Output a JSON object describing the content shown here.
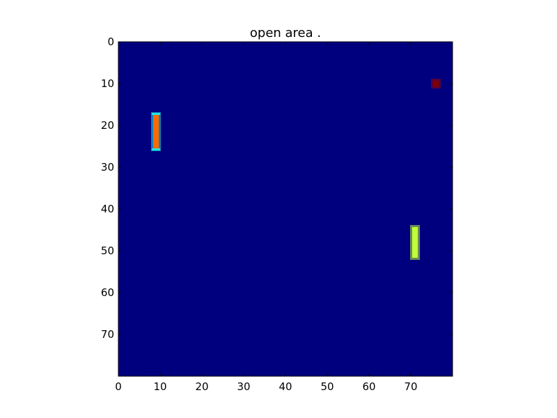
{
  "chart_data": {
    "type": "heatmap",
    "title": "open area .",
    "xlabel": "",
    "ylabel": "",
    "xlim": [
      0,
      80
    ],
    "ylim": [
      80,
      0
    ],
    "x_ticks": [
      0,
      10,
      20,
      30,
      40,
      50,
      60,
      70
    ],
    "y_ticks": [
      0,
      10,
      20,
      30,
      40,
      50,
      60,
      70
    ],
    "grid": false,
    "colormap": "jet",
    "background_value": 0.0,
    "background_color": "#00007f",
    "features": [
      {
        "kind": "vertical-bar",
        "x_range": [
          8,
          10
        ],
        "y_range": [
          17,
          26
        ],
        "value": 0.8,
        "color": "#ff6a00",
        "edge_color": "#1fe6e0"
      },
      {
        "kind": "vertical-bar",
        "x_range": [
          70,
          72
        ],
        "y_range": [
          44,
          52
        ],
        "value": 0.6,
        "color": "#bfff39",
        "edge_color": "#bfff39"
      },
      {
        "kind": "point",
        "x_range": [
          75,
          77
        ],
        "y_range": [
          9,
          11
        ],
        "value": 1.0,
        "color": "#7f0000",
        "edge_color": "#a00000"
      }
    ]
  }
}
